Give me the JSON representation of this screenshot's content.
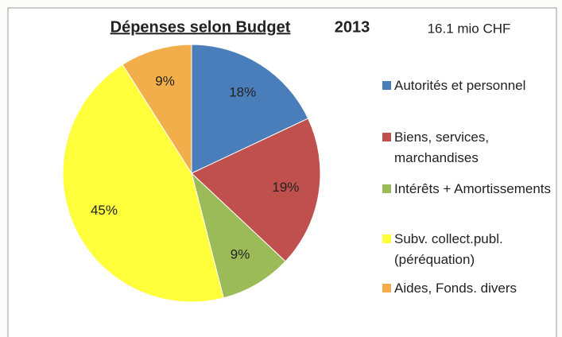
{
  "chart_data": {
    "type": "pie",
    "title": "Dépenses selon Budget",
    "subtitle": "2013",
    "annotation": "16.1 mio CHF",
    "categories": [
      "Autorités et personnel",
      "Biens, services, marchandises",
      "Intérêts + Amortissements",
      "Subv. collect.publ. (péréquation)",
      "Aides, Fonds. divers"
    ],
    "values": [
      18,
      19,
      9,
      45,
      9
    ],
    "value_labels": [
      "18%",
      "19%",
      "9%",
      "45%",
      "9%"
    ],
    "colors": [
      "#4a7ebb",
      "#c0504d",
      "#9bbb59",
      "#ffff3c",
      "#f2ae4a"
    ],
    "legend": "right"
  }
}
